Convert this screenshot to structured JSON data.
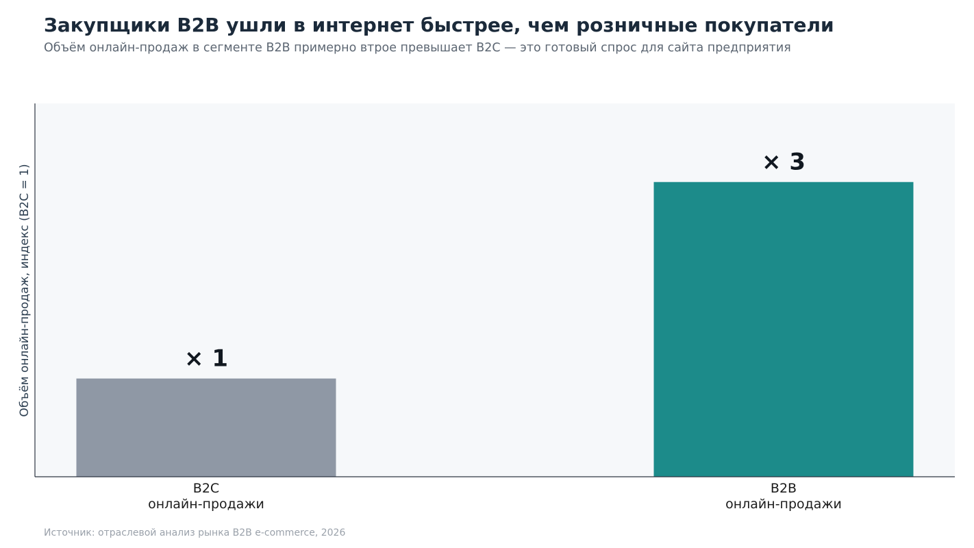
{
  "header": {
    "title": "Закупщики B2B ушли в интернет быстрее, чем розничные покупатели",
    "subtitle": "Объём онлайн-продаж в сегменте B2B примерно втрое превышает B2C — это готовый спрос для сайта предприятия"
  },
  "footer": {
    "source": "Источник: отраслевой анализ рынка B2B e-commerce, 2026"
  },
  "chart_data": {
    "type": "bar",
    "categories": [
      [
        "B2C",
        "онлайн-продажи"
      ],
      [
        "B2B",
        "онлайн-продажи"
      ]
    ],
    "values": [
      1,
      3
    ],
    "data_labels": [
      "× 1",
      "× 3"
    ],
    "colors": [
      "#8f98a5",
      "#1c8b8a"
    ],
    "plot_background": "#f6f8fa",
    "ylabel": "Объём онлайн-продаж, индекс (B2C = 1)",
    "xlabel": "",
    "ylim": [
      0,
      3.8
    ],
    "grid": false,
    "yticks_visible": false
  }
}
